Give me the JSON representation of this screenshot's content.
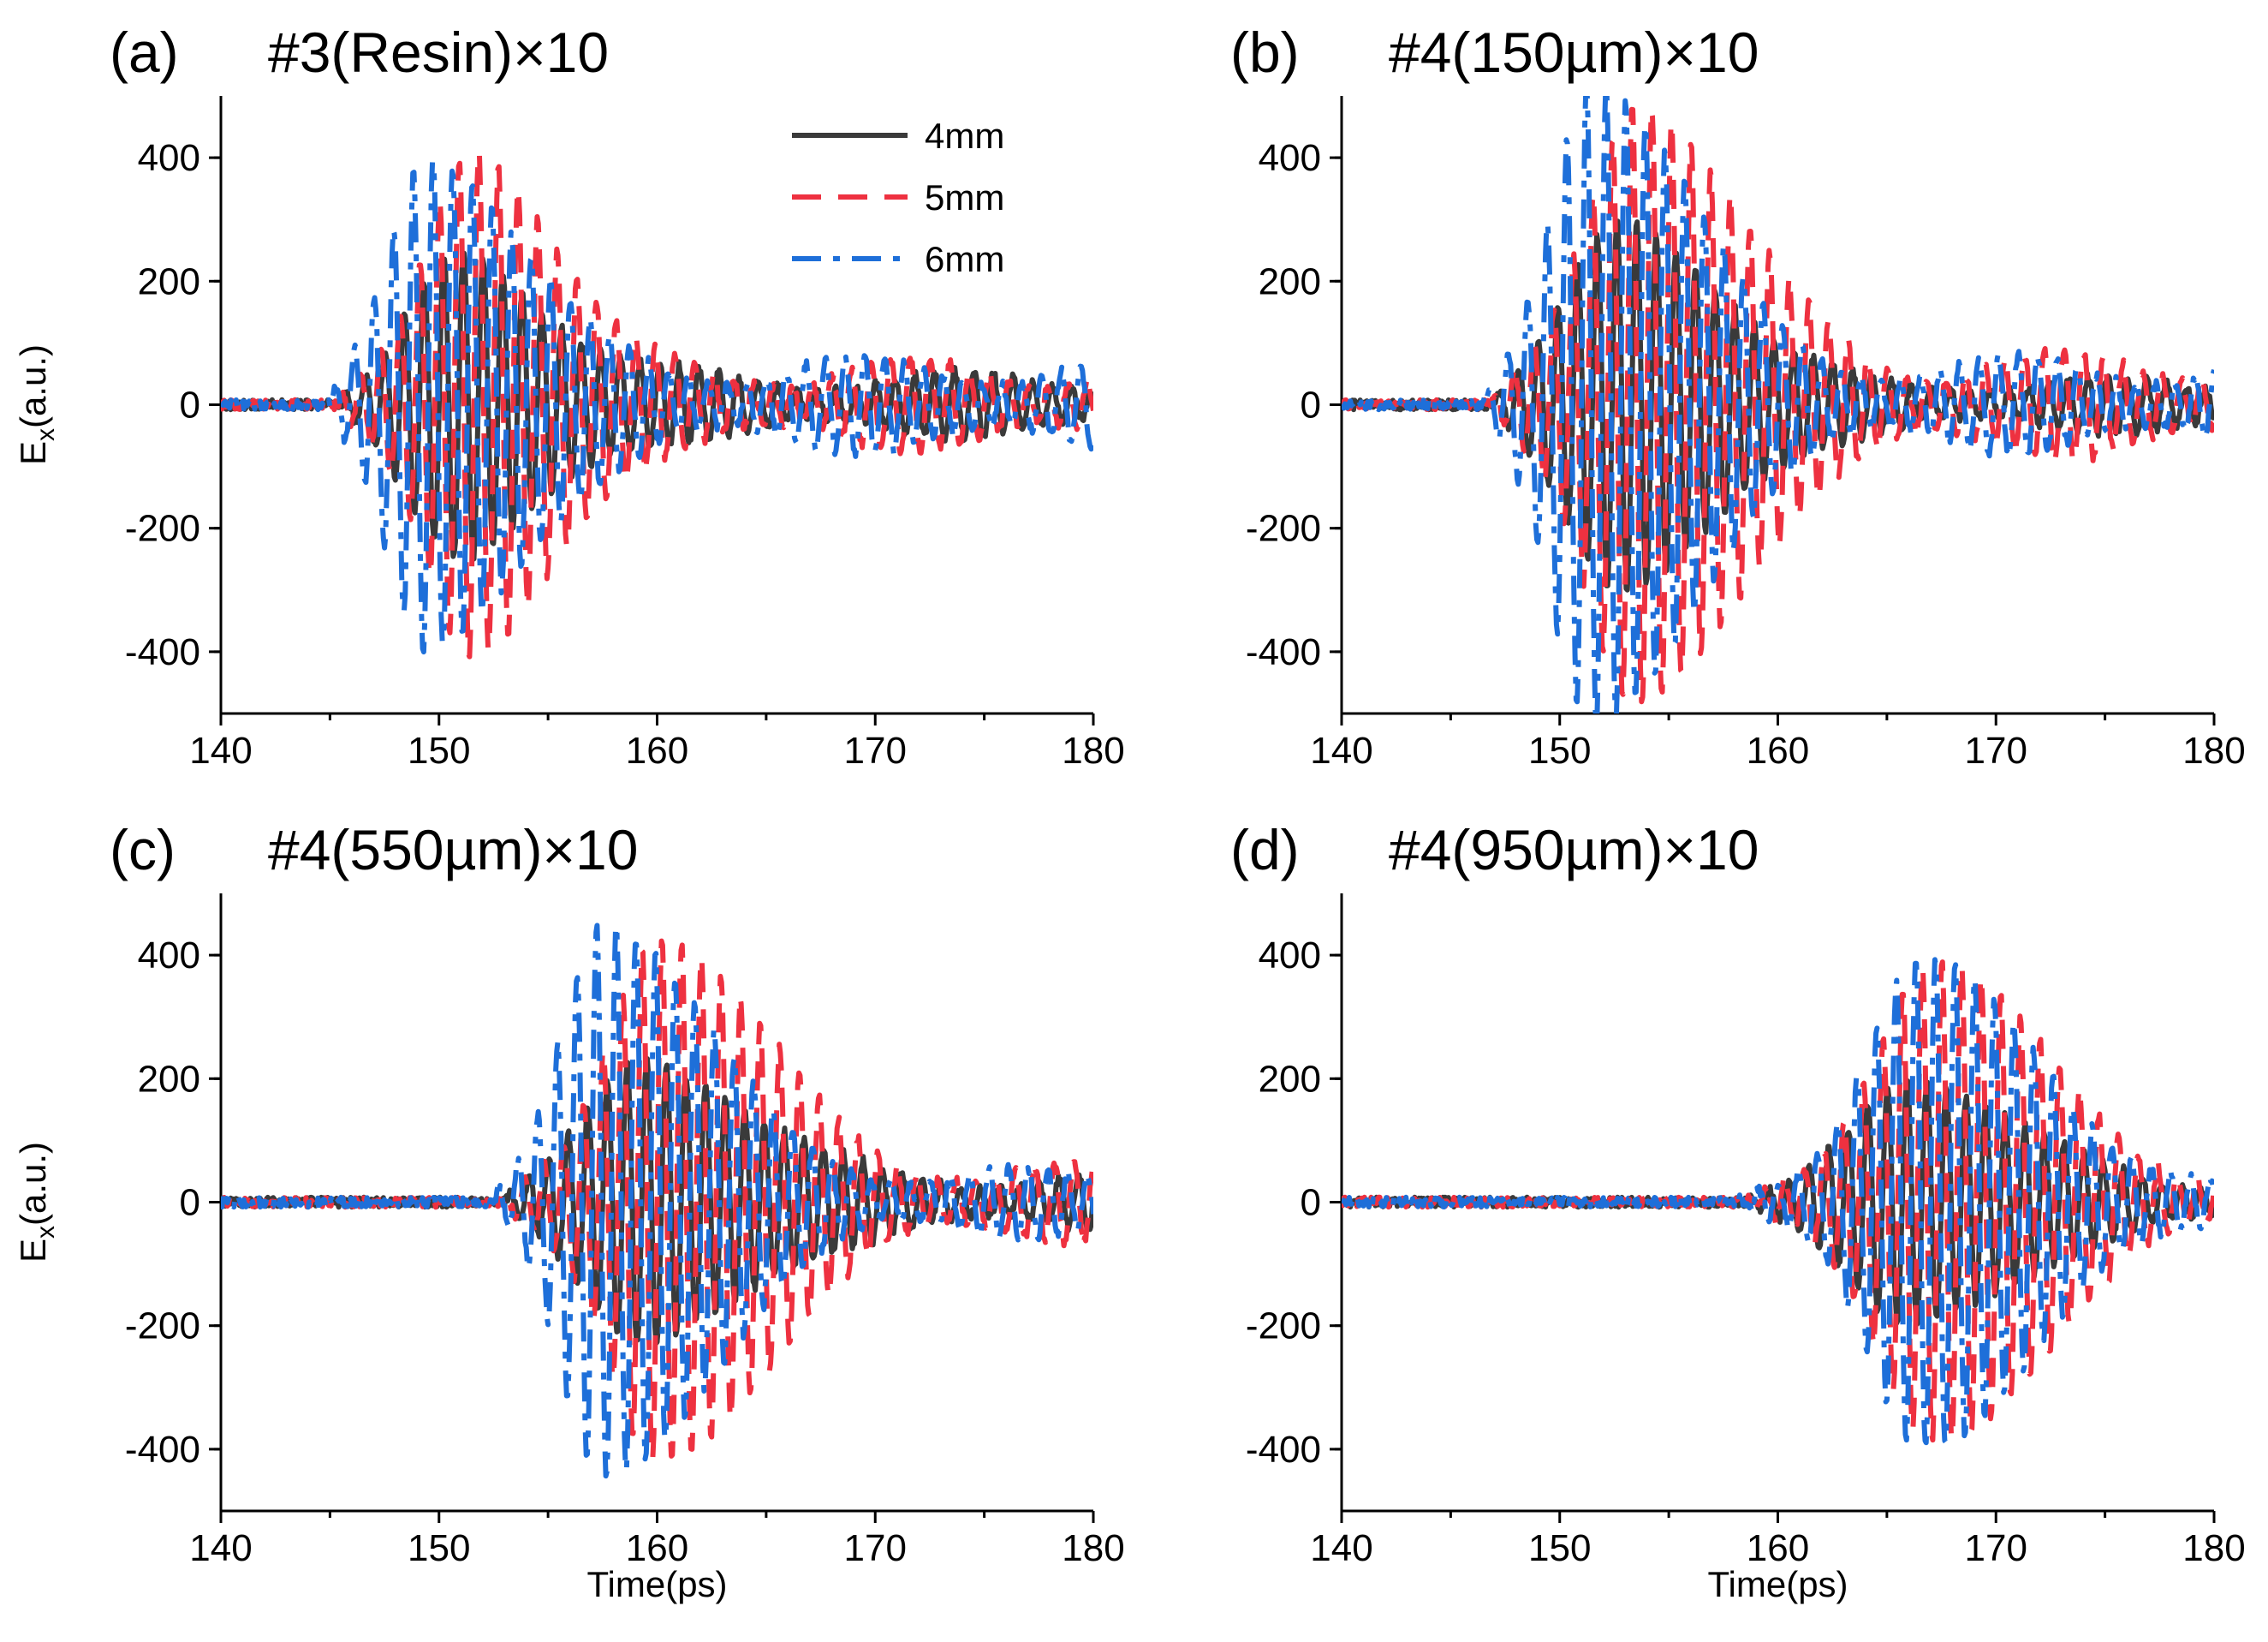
{
  "chart_data": [
    {
      "type": "line",
      "label": "(a)",
      "title": "#3(Resin)×10",
      "xlabel": "",
      "ylabel": "E",
      "ylabel_sub": "x",
      "ylabel_suffix": "(a.u.)",
      "xlim": [
        140,
        180
      ],
      "ylim": [
        -500,
        500
      ],
      "xticks": [
        140,
        150,
        160,
        170,
        180
      ],
      "yticks": [
        -400,
        -200,
        0,
        200,
        400
      ],
      "legend": {
        "position": "top-center",
        "entries": [
          "4mm",
          "5mm",
          "6mm"
        ]
      },
      "series": [
        {
          "name": "4mm",
          "color": "#3a3a3a",
          "dash": "solid",
          "onset": 145.5,
          "peak_time": 151.0,
          "amplitude": 210,
          "period": 0.9,
          "width_rise": 3.0,
          "width_fall": 5.5,
          "tail": 55
        },
        {
          "name": "5mm",
          "color": "#ee3140",
          "dash": "dashed",
          "onset": 145.3,
          "peak_time": 151.5,
          "amplitude": 380,
          "period": 0.9,
          "width_rise": 2.8,
          "width_fall": 5.0,
          "tail": 75
        },
        {
          "name": "6mm",
          "color": "#1e6fd9",
          "dash": "dashdot",
          "onset": 145.0,
          "peak_time": 149.5,
          "amplitude": 370,
          "period": 0.9,
          "width_rise": 2.5,
          "width_fall": 5.5,
          "tail": 80
        }
      ]
    },
    {
      "type": "line",
      "label": "(b)",
      "title": "#4(150µm)×10",
      "xlabel": "",
      "ylabel": "",
      "xlim": [
        140,
        180
      ],
      "ylim": [
        -500,
        500
      ],
      "xticks": [
        140,
        150,
        160,
        170,
        180
      ],
      "yticks": [
        -400,
        -200,
        0,
        200,
        400
      ],
      "series": [
        {
          "name": "4mm",
          "color": "#3a3a3a",
          "dash": "solid",
          "onset": 147.0,
          "peak_time": 153.0,
          "amplitude": 270,
          "period": 0.9,
          "width_rise": 3.5,
          "width_fall": 6.0,
          "tail": 45
        },
        {
          "name": "5mm",
          "color": "#ee3140",
          "dash": "dashed",
          "onset": 146.8,
          "peak_time": 153.5,
          "amplitude": 450,
          "period": 0.9,
          "width_rise": 3.0,
          "width_fall": 6.0,
          "tail": 90
        },
        {
          "name": "6mm",
          "color": "#1e6fd9",
          "dash": "dashdot",
          "onset": 146.5,
          "peak_time": 151.5,
          "amplitude": 490,
          "period": 0.9,
          "width_rise": 2.6,
          "width_fall": 6.0,
          "tail": 80
        }
      ]
    },
    {
      "type": "line",
      "label": "(c)",
      "title": "#4(550µm)×10",
      "xlabel": "Time(ps)",
      "ylabel": "E",
      "ylabel_sub": "x",
      "ylabel_suffix": "(a.u.)",
      "xlim": [
        140,
        180
      ],
      "ylim": [
        -500,
        500
      ],
      "xticks": [
        140,
        150,
        160,
        170,
        180
      ],
      "yticks": [
        -400,
        -200,
        0,
        200,
        400
      ],
      "series": [
        {
          "name": "4mm",
          "color": "#3a3a3a",
          "dash": "solid",
          "onset": 153.0,
          "peak_time": 159.5,
          "amplitude": 200,
          "period": 0.9,
          "width_rise": 3.5,
          "width_fall": 6.5,
          "tail": 50
        },
        {
          "name": "5mm",
          "color": "#ee3140",
          "dash": "dashed",
          "onset": 152.8,
          "peak_time": 160.0,
          "amplitude": 400,
          "period": 0.9,
          "width_rise": 3.0,
          "width_fall": 6.5,
          "tail": 65
        },
        {
          "name": "6mm",
          "color": "#1e6fd9",
          "dash": "dashdot",
          "onset": 152.5,
          "peak_time": 157.5,
          "amplitude": 430,
          "period": 0.9,
          "width_rise": 2.6,
          "width_fall": 6.5,
          "tail": 55
        }
      ]
    },
    {
      "type": "line",
      "label": "(d)",
      "title": "#4(950µm)×10",
      "xlabel": "Time(ps)",
      "ylabel": "",
      "xlim": [
        140,
        180
      ],
      "ylim": [
        -500,
        500
      ],
      "xticks": [
        140,
        150,
        160,
        170,
        180
      ],
      "yticks": [
        -400,
        -200,
        0,
        200,
        400
      ],
      "series": [
        {
          "name": "4mm",
          "color": "#3a3a3a",
          "dash": "solid",
          "onset": 158.5,
          "peak_time": 166.0,
          "amplitude": 180,
          "period": 0.9,
          "width_rise": 3.5,
          "width_fall": 7.0,
          "tail": 30
        },
        {
          "name": "5mm",
          "color": "#ee3140",
          "dash": "dashed",
          "onset": 158.3,
          "peak_time": 167.0,
          "amplitude": 370,
          "period": 0.9,
          "width_rise": 3.5,
          "width_fall": 7.0,
          "tail": 40
        },
        {
          "name": "6mm",
          "color": "#1e6fd9",
          "dash": "dashdot",
          "onset": 158.0,
          "peak_time": 166.5,
          "amplitude": 370,
          "period": 0.9,
          "width_rise": 3.5,
          "width_fall": 7.0,
          "tail": 40
        }
      ]
    }
  ]
}
